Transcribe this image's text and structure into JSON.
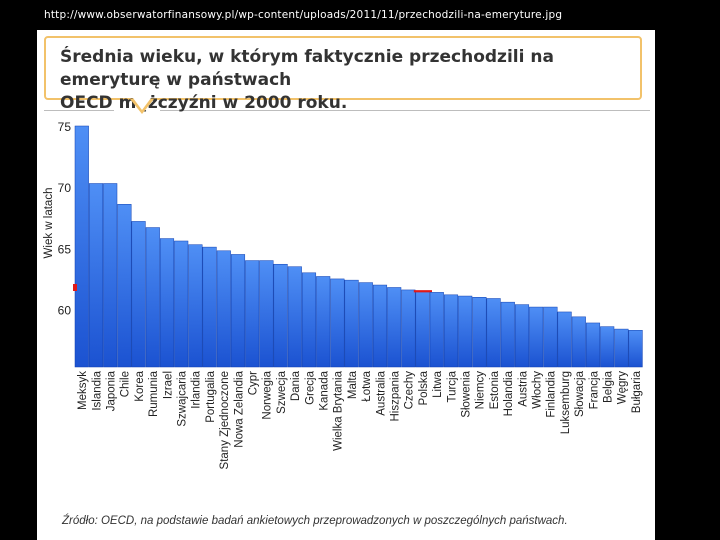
{
  "source_url": "http://www.obserwatorfinansowy.pl/wp-content/uploads/2011/11/przechodzili-na-emeryture.jpg",
  "title": {
    "line1": "Średnia wieku, w którym faktycznie przechodzili na emeryturę w państwach",
    "line2": "OECD mężczyźni w 2000 roku."
  },
  "source_note": "Źródło: OECD, na podstawie badań ankietowych przeprowadzonych w poszczególnych państwach.",
  "colors": {
    "bar_top": "#4f8ff5",
    "bar_bottom": "#1b52d1",
    "bar_edge": "#0f3fb0",
    "highlight_marker": "#e01919",
    "callout_border": "#f2c26a"
  },
  "chart_data": {
    "type": "bar",
    "title": "Średnia wieku, w którym faktycznie przechodzili na emeryturę w państwach OECD mężczyźni w 2000 roku.",
    "xlabel": "",
    "ylabel": "Wiek w latach",
    "ylim": [
      55.3,
      75
    ],
    "yticks": [
      60,
      65,
      70,
      75
    ],
    "grid": false,
    "categories": [
      "Meksyk",
      "Islandia",
      "Japonia",
      "Chile",
      "Korea",
      "Rumunia",
      "Izrael",
      "Szwajcaria",
      "Irlandia",
      "Portugalia",
      "Stany Zjednoczone",
      "Nowa Zelandia",
      "Cypr",
      "Norwegia",
      "Szwecja",
      "Dania",
      "Grecja",
      "Kanada",
      "Wielka Brytania",
      "Malta",
      "Łotwa",
      "Australia",
      "Hiszpania",
      "Czechy",
      "Polska",
      "Litwa",
      "Turcja",
      "Słowenia",
      "Niemcy",
      "Estonia",
      "Holandia",
      "Austria",
      "Włochy",
      "Finlandia",
      "Luksemburg",
      "Słowacja",
      "Francja",
      "Belgia",
      "Węgry",
      "Bułgaria"
    ],
    "values": [
      75.0,
      70.3,
      70.3,
      68.6,
      67.2,
      66.7,
      65.8,
      65.6,
      65.3,
      65.1,
      64.8,
      64.5,
      64.0,
      64.0,
      63.7,
      63.5,
      63.0,
      62.7,
      62.5,
      62.4,
      62.2,
      62.0,
      61.8,
      61.6,
      61.5,
      61.4,
      61.2,
      61.1,
      61.0,
      60.9,
      60.6,
      60.4,
      60.2,
      60.2,
      59.8,
      59.4,
      58.9,
      58.6,
      58.4,
      58.3
    ],
    "highlight": "Polska"
  }
}
